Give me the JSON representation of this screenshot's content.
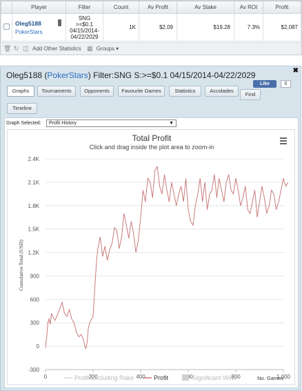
{
  "stats": {
    "columns": [
      "Player",
      "Filter",
      "Count",
      "Av Profit",
      "Av Stake",
      "Av ROI",
      "Profit"
    ],
    "row": {
      "player": "Oleg5188",
      "site": "PokerStars",
      "filter_lines": [
        "SNG",
        ">=$0.1",
        "04/15/2014-",
        "04/22/2029"
      ],
      "count": "1K",
      "av_profit": "$2.09",
      "av_stake": "$19.28",
      "av_roi": "7.3%",
      "profit": "$2,087"
    },
    "toolbar": {
      "add_other": "Add Other Statistics",
      "groups": "Groups"
    }
  },
  "detail": {
    "player": "Oleg5188",
    "site": "PokerStars",
    "filter_text": "Filter:SNG S:>=$0.1 04/15/2014-04/22/2029",
    "like_label": "Like",
    "like_count": "0",
    "tabs": [
      "Graphs",
      "Tournaments",
      "Opponents",
      "Favourite Games",
      "Statistics",
      "Accolades",
      "Find",
      "Timeline"
    ],
    "active_tab": "Graphs",
    "graph_select_label": "Graph Selected:",
    "graph_selected": "Profit History"
  },
  "chart_data": {
    "type": "line",
    "title": "Total Profit",
    "subtitle": "Click and drag inside the plot area to zoom-in",
    "ylabel": "Cumulative Total (USD)",
    "xlabel": "No. Games",
    "xlim": [
      0,
      1000
    ],
    "ylim": [
      -300,
      2400
    ],
    "x_ticks": [
      "0",
      "200",
      "400",
      "600",
      "800",
      "1,000"
    ],
    "y_ticks": [
      "-300",
      "0",
      "300",
      "600",
      "900",
      "1.2K",
      "1.5K",
      "1.8K",
      "2.1K",
      "2.4K"
    ],
    "grid": "horizontal",
    "legend": [
      "Profit Excluding Rake",
      "Profit",
      "Significant Wins"
    ],
    "legend_placement": "bottom",
    "colors": {
      "profit": "#c97b7b",
      "excl_rake": "#d6d6d6",
      "sig_wins": "#cfcfcf"
    },
    "series": [
      {
        "name": "Profit",
        "x": [
          0,
          5,
          10,
          15,
          20,
          25,
          30,
          40,
          50,
          60,
          70,
          80,
          90,
          100,
          110,
          120,
          130,
          140,
          150,
          160,
          165,
          170,
          175,
          180,
          185,
          190,
          200,
          210,
          215,
          220,
          230,
          240,
          250,
          260,
          270,
          280,
          290,
          300,
          310,
          320,
          330,
          340,
          350,
          360,
          370,
          380,
          390,
          400,
          410,
          420,
          430,
          440,
          450,
          460,
          470,
          480,
          490,
          500,
          510,
          520,
          530,
          540,
          550,
          560,
          570,
          580,
          590,
          600,
          610,
          620,
          630,
          640,
          650,
          660,
          670,
          680,
          690,
          700,
          710,
          720,
          730,
          740,
          750,
          760,
          770,
          780,
          790,
          800,
          810,
          820,
          830,
          840,
          850,
          860,
          870,
          880,
          890,
          900,
          910,
          920,
          930,
          940,
          950,
          960,
          970,
          980,
          990,
          1000,
          1010,
          1020
        ],
        "y": [
          -20,
          120,
          300,
          350,
          280,
          420,
          380,
          330,
          400,
          480,
          560,
          420,
          380,
          470,
          350,
          300,
          180,
          120,
          150,
          80,
          0,
          -30,
          50,
          230,
          290,
          330,
          380,
          880,
          1100,
          1250,
          1400,
          1150,
          1280,
          1100,
          1240,
          1320,
          1520,
          1480,
          1250,
          1400,
          1700,
          1550,
          1380,
          1600,
          1450,
          1200,
          1350,
          1650,
          2000,
          1850,
          2150,
          2100,
          1900,
          2250,
          2300,
          2050,
          1950,
          2200,
          2000,
          1850,
          2100,
          1950,
          1800,
          1950,
          2050,
          1850,
          2150,
          1750,
          1600,
          1550,
          1800,
          1950,
          2150,
          1850,
          2100,
          1750,
          1950,
          2000,
          2200,
          1900,
          2150,
          2000,
          1850,
          2100,
          2200,
          2000,
          1950,
          2150,
          2000,
          1800,
          1900,
          2050,
          1750,
          1700,
          1850,
          2000,
          1650,
          1850,
          2050,
          1900,
          1700,
          1800,
          2000,
          1950,
          1750,
          1850,
          2000,
          2150,
          2050,
          2100
        ]
      }
    ]
  }
}
